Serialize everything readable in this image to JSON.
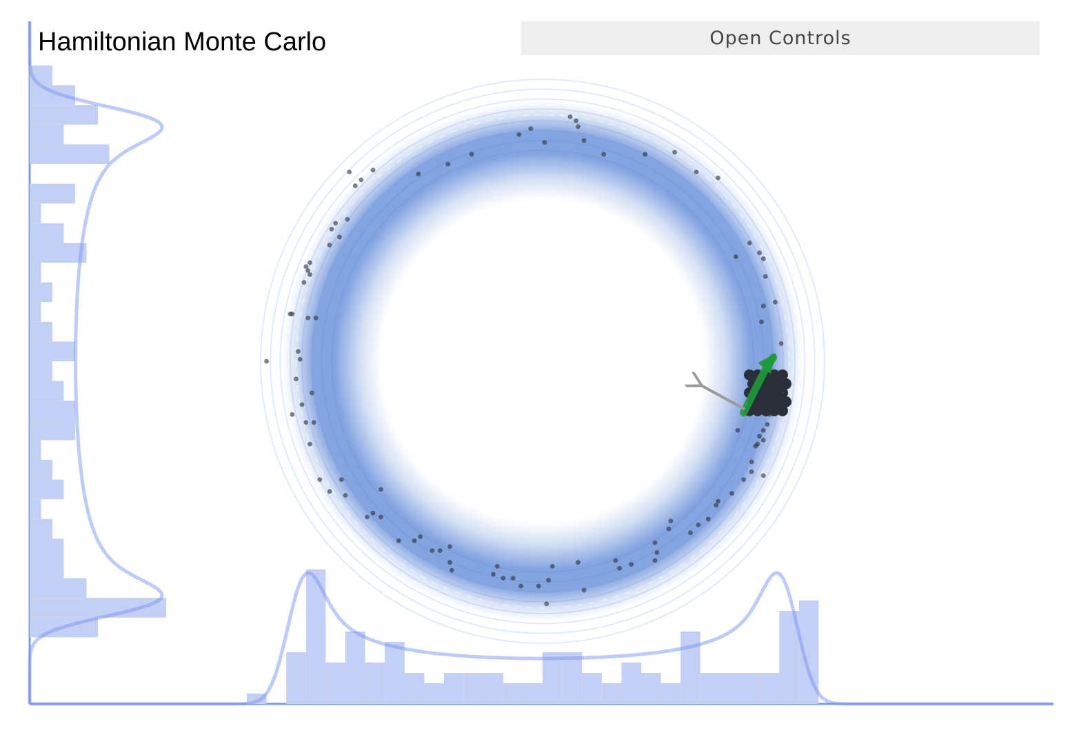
{
  "app": {
    "title": "Hamiltonian Monte Carlo",
    "controls_label": "Open Controls"
  },
  "colors": {
    "accent": "#7b98f0",
    "hist_fill": "#c3cff5",
    "ring": "#5b86d6",
    "sample_dot": "#2b2f3a",
    "trajectory": "#1f9a3a",
    "momentum_arrow": "#9a9a9a"
  },
  "chart_data": {
    "type": "scatter",
    "title": "Hamiltonian Monte Carlo",
    "xlabel": "",
    "ylabel": "",
    "xlim": [
      -2.6,
      2.6
    ],
    "ylim": [
      -1.9,
      1.9
    ],
    "grid": false,
    "distribution": "donut",
    "ring_radius": 1.25,
    "samples": [
      [
        0.14,
        1.24
      ],
      [
        0.17,
        1.22
      ],
      [
        0.18,
        1.19
      ],
      [
        -0.06,
        1.18
      ],
      [
        -0.12,
        1.15
      ],
      [
        0.01,
        1.11
      ],
      [
        0.21,
        1.12
      ],
      [
        0.67,
        1.06
      ],
      [
        0.52,
        1.05
      ],
      [
        0.31,
        1.05
      ],
      [
        -0.36,
        1.05
      ],
      [
        -0.48,
        1.0
      ],
      [
        -0.63,
        0.95
      ],
      [
        -0.86,
        0.97
      ],
      [
        -0.98,
        0.96
      ],
      [
        -0.92,
        0.92
      ],
      [
        -0.95,
        0.89
      ],
      [
        0.78,
        0.96
      ],
      [
        0.89,
        0.93
      ],
      [
        -0.99,
        0.72
      ],
      [
        -1.05,
        0.7
      ],
      [
        -1.07,
        0.67
      ],
      [
        -1.03,
        0.63
      ],
      [
        -1.08,
        0.59
      ],
      [
        1.05,
        0.6
      ],
      [
        1.1,
        0.55
      ],
      [
        0.98,
        0.53
      ],
      [
        1.12,
        0.52
      ],
      [
        -1.18,
        0.5
      ],
      [
        -1.2,
        0.48
      ],
      [
        -1.19,
        0.46
      ],
      [
        -1.18,
        0.44
      ],
      [
        -1.21,
        0.4
      ],
      [
        1.13,
        0.43
      ],
      [
        1.18,
        0.3
      ],
      [
        1.12,
        0.28
      ],
      [
        -1.27,
        0.24
      ],
      [
        -1.28,
        0.24
      ],
      [
        -1.19,
        0.22
      ],
      [
        -1.24,
        0.05
      ],
      [
        -1.23,
        0.01
      ],
      [
        -1.15,
        0.22
      ],
      [
        1.11,
        0.2
      ],
      [
        1.21,
        0.09
      ],
      [
        -1.4,
        0.0
      ],
      [
        -1.25,
        -0.09
      ],
      [
        -1.27,
        -0.27
      ],
      [
        -1.17,
        -0.16
      ],
      [
        -1.22,
        -0.22
      ],
      [
        -1.16,
        -0.31
      ],
      [
        -1.2,
        -0.31
      ],
      [
        -1.18,
        -0.42
      ],
      [
        -1.13,
        -0.6
      ],
      [
        -1.08,
        -0.66
      ],
      [
        -1.02,
        -0.6
      ],
      [
        -1.0,
        -0.68
      ],
      [
        -0.82,
        -0.65
      ],
      [
        -0.86,
        -0.77
      ],
      [
        -0.89,
        -0.79
      ],
      [
        -0.82,
        -0.79
      ],
      [
        -0.73,
        -0.91
      ],
      [
        -0.65,
        -0.91
      ],
      [
        -0.62,
        -0.89
      ],
      [
        -0.56,
        -0.96
      ],
      [
        -0.52,
        -0.96
      ],
      [
        -0.47,
        -0.94
      ],
      [
        -0.47,
        -1.02
      ],
      [
        -0.46,
        -1.06
      ],
      [
        -0.23,
        -1.04
      ],
      [
        -0.25,
        -1.08
      ],
      [
        -0.2,
        -1.1
      ],
      [
        -0.15,
        -1.1
      ],
      [
        -0.11,
        -1.14
      ],
      [
        -0.02,
        -1.14
      ],
      [
        0.03,
        -1.11
      ],
      [
        0.05,
        -1.04
      ],
      [
        0.18,
        -1.02
      ],
      [
        0.21,
        -1.16
      ],
      [
        0.02,
        -1.23
      ],
      [
        0.37,
        -1.01
      ],
      [
        0.39,
        -1.05
      ],
      [
        0.45,
        -1.03
      ],
      [
        0.57,
        -1.01
      ],
      [
        0.58,
        -0.97
      ],
      [
        0.57,
        -0.92
      ],
      [
        0.64,
        -0.85
      ],
      [
        0.65,
        -0.81
      ],
      [
        0.75,
        -0.87
      ],
      [
        0.79,
        -0.83
      ],
      [
        0.84,
        -0.8
      ],
      [
        0.88,
        -0.73
      ],
      [
        0.89,
        -0.71
      ],
      [
        0.96,
        -0.67
      ],
      [
        1.02,
        -0.6
      ],
      [
        1.06,
        -0.56
      ],
      [
        1.12,
        -0.58
      ],
      [
        1.06,
        -0.51
      ],
      [
        1.12,
        -0.4
      ],
      [
        1.1,
        -0.38
      ],
      [
        1.08,
        -0.43
      ],
      [
        1.14,
        -0.32
      ],
      [
        1.15,
        -0.27
      ],
      [
        1.12,
        -0.35
      ],
      [
        1.09,
        -0.42
      ],
      [
        0.99,
        -0.35
      ],
      [
        1.12,
        -0.1
      ]
    ],
    "current_cluster": {
      "center": [
        1.14,
        -0.16
      ]
    },
    "trajectory": [
      [
        1.02,
        -0.26
      ],
      [
        1.08,
        -0.14
      ],
      [
        1.12,
        -0.06
      ],
      [
        1.17,
        0.02
      ]
    ],
    "momentum": {
      "from": [
        1.02,
        -0.24
      ],
      "to": [
        0.8,
        -0.12
      ]
    },
    "x_marginal": {
      "bin_edges": [
        -1.5,
        -1.4,
        -1.3,
        -1.2,
        -1.1,
        -1.0,
        -0.9,
        -0.8,
        -0.7,
        -0.6,
        -0.5,
        -0.4,
        -0.3,
        -0.2,
        -0.1,
        0.0,
        0.1,
        0.2,
        0.3,
        0.4,
        0.5,
        0.6,
        0.7,
        0.8,
        0.9,
        1.0,
        1.1,
        1.2,
        1.3,
        1.4
      ],
      "counts": [
        1,
        0,
        5,
        13,
        4,
        7,
        4,
        6,
        3,
        2,
        3,
        3,
        3,
        2,
        2,
        5,
        5,
        3,
        2,
        4,
        3,
        2,
        7,
        3,
        3,
        3,
        3,
        9,
        10,
        4
      ]
    },
    "y_marginal": {
      "bin_edges": [
        1.5,
        1.4,
        1.3,
        1.2,
        1.1,
        1.0,
        0.9,
        0.8,
        0.7,
        0.6,
        0.5,
        0.4,
        0.3,
        0.2,
        0.1,
        0.0,
        -0.1,
        -0.2,
        -0.3,
        -0.4,
        -0.5,
        -0.6,
        -0.7,
        -0.8,
        -0.9,
        -1.0,
        -1.1,
        -1.2,
        -1.3,
        -1.4
      ],
      "counts": [
        2,
        4,
        6,
        3,
        7,
        0,
        4,
        1,
        3,
        5,
        1,
        2,
        1,
        2,
        4,
        2,
        3,
        4,
        4,
        1,
        2,
        3,
        1,
        2,
        3,
        3,
        5,
        12,
        6,
        2
      ]
    }
  }
}
